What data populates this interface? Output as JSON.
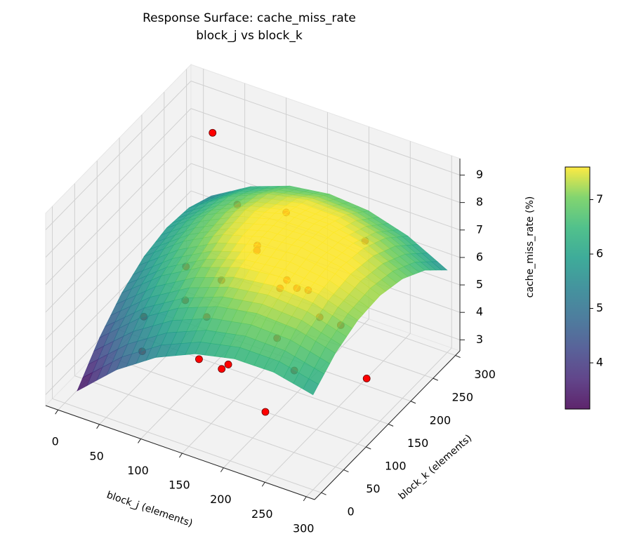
{
  "chart_data": {
    "type": "surface3d",
    "title": "Response Surface: cache_miss_rate",
    "subtitle": "block_j vs block_k",
    "x_label": "block_j (elements)",
    "y_label": "block_k (elements)",
    "z_label": "cache_miss_rate (%)",
    "xlim": [
      -15,
      310
    ],
    "ylim": [
      -15,
      310
    ],
    "zlim": [
      2.6,
      9.6
    ],
    "xticks": [
      0,
      50,
      100,
      150,
      200,
      250,
      300
    ],
    "yticks": [
      0,
      50,
      100,
      150,
      200,
      250,
      300
    ],
    "zticks": [
      3,
      4,
      5,
      6,
      7,
      8,
      9
    ],
    "grid": true,
    "x_grid": [
      15,
      62.5,
      110,
      157.5,
      205,
      252.5,
      300
    ],
    "y_grid": [
      0,
      50,
      100,
      150,
      200,
      250,
      300
    ],
    "z": [
      [
        3.2,
        4.47,
        5.42,
        6.05,
        6.37,
        6.38,
        6.06
      ],
      [
        4.3,
        5.5,
        6.38,
        6.94,
        7.19,
        7.12,
        6.74
      ],
      [
        5.1,
        6.22,
        7.03,
        7.53,
        7.7,
        7.56,
        7.11
      ],
      [
        5.6,
        6.65,
        7.39,
        7.81,
        7.92,
        7.71,
        7.18
      ],
      [
        5.8,
        6.78,
        7.45,
        7.8,
        7.83,
        7.55,
        6.95
      ],
      [
        5.7,
        6.61,
        7.21,
        7.49,
        7.45,
        7.1,
        6.43
      ],
      [
        5.3,
        6.14,
        6.66,
        6.87,
        6.76,
        6.34,
        5.6
      ]
    ],
    "colormap": "viridis",
    "colorbar": {
      "lim": [
        3.15,
        7.6
      ],
      "ticks": [
        4,
        5,
        6,
        7
      ]
    },
    "scatter": {
      "color": "#ff0000",
      "x": [
        50,
        75,
        126,
        210,
        117,
        109,
        47,
        91,
        162,
        151,
        166,
        178,
        64,
        29,
        98,
        200,
        226,
        168,
        46,
        92,
        123,
        121,
        212,
        260,
        203
      ],
      "y": [
        238,
        247,
        262,
        283,
        214,
        228,
        184,
        182,
        197,
        202,
        212,
        215,
        151,
        123,
        136,
        200,
        199,
        164,
        88,
        130,
        138,
        127,
        121,
        194,
        73
      ],
      "z": [
        9.0,
        6.5,
        6.5,
        6.0,
        6.0,
        5.5,
        5.0,
        5.0,
        5.5,
        5.0,
        5.0,
        5.0,
        4.5,
        4.0,
        4.5,
        4.5,
        4.5,
        4.0,
        3.5,
        3.0,
        3.0,
        3.0,
        4.0,
        3.0,
        3.2
      ]
    }
  }
}
